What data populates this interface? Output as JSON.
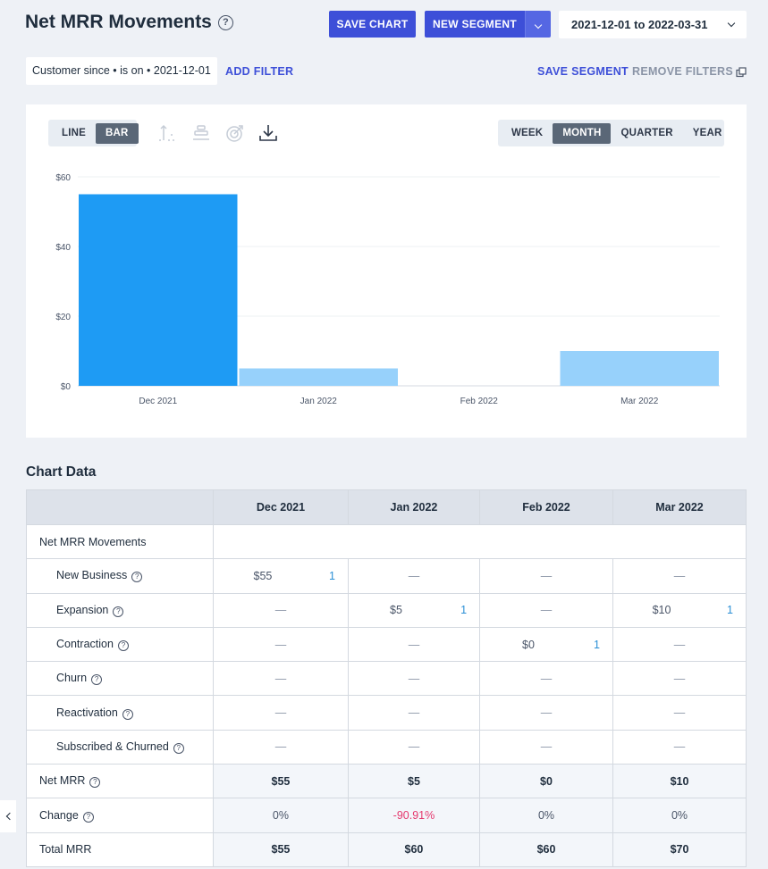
{
  "header": {
    "title": "Net MRR Movements",
    "save_chart": "SAVE CHART",
    "new_segment": "NEW SEGMENT",
    "date_range": "2021-12-01 to 2022-03-31"
  },
  "filters": {
    "chip": "Customer since • is on • 2021-12-01",
    "add_filter": "ADD FILTER",
    "save_segment": "SAVE SEGMENT",
    "remove_filters": "REMOVE FILTERS"
  },
  "chart_controls": {
    "chart_types": [
      "LINE",
      "BAR"
    ],
    "active_chart_type": "BAR",
    "periods": [
      "WEEK",
      "MONTH",
      "QUARTER",
      "YEAR"
    ],
    "active_period": "MONTH",
    "icons": [
      "axis-icon",
      "stack-icon",
      "goal-icon",
      "download-icon"
    ]
  },
  "chart_data": {
    "type": "bar",
    "categories": [
      "Dec 2021",
      "Jan 2022",
      "Feb 2022",
      "Mar 2022"
    ],
    "values": [
      55,
      5,
      0,
      10
    ],
    "y_ticks": [
      "$0",
      "$20",
      "$40",
      "$60"
    ],
    "ylim": [
      0,
      60
    ],
    "grid": true,
    "colors": [
      "#1e9bf4",
      "#97d1fb",
      "#97d1fb",
      "#97d1fb"
    ]
  },
  "table": {
    "section_title": "Chart Data",
    "columns": [
      "Dec 2021",
      "Jan 2022",
      "Feb 2022",
      "Mar 2022"
    ],
    "group_label": "Net MRR Movements",
    "rows": [
      {
        "label": "New Business",
        "cells": [
          {
            "v": "$55",
            "c": "1"
          },
          {
            "v": "—"
          },
          {
            "v": "—"
          },
          {
            "v": "—"
          }
        ]
      },
      {
        "label": "Expansion",
        "cells": [
          {
            "v": "—"
          },
          {
            "v": "$5",
            "c": "1"
          },
          {
            "v": "—"
          },
          {
            "v": "$10",
            "c": "1"
          }
        ]
      },
      {
        "label": "Contraction",
        "cells": [
          {
            "v": "—"
          },
          {
            "v": "—"
          },
          {
            "v": "$0",
            "c": "1"
          },
          {
            "v": "—"
          }
        ]
      },
      {
        "label": "Churn",
        "cells": [
          {
            "v": "—"
          },
          {
            "v": "—"
          },
          {
            "v": "—"
          },
          {
            "v": "—"
          }
        ]
      },
      {
        "label": "Reactivation",
        "cells": [
          {
            "v": "—"
          },
          {
            "v": "—"
          },
          {
            "v": "—"
          },
          {
            "v": "—"
          }
        ]
      },
      {
        "label": "Subscribed & Churned",
        "cells": [
          {
            "v": "—"
          },
          {
            "v": "—"
          },
          {
            "v": "—"
          },
          {
            "v": "—"
          }
        ]
      }
    ],
    "net_mrr": {
      "label": "Net MRR",
      "cells": [
        "$55",
        "$5",
        "$0",
        "$10"
      ]
    },
    "change": {
      "label": "Change",
      "cells": [
        "0%",
        "-90.91%",
        "0%",
        "0%"
      ]
    },
    "total_mrr": {
      "label": "Total MRR",
      "cells": [
        "$55",
        "$60",
        "$60",
        "$70"
      ]
    }
  }
}
